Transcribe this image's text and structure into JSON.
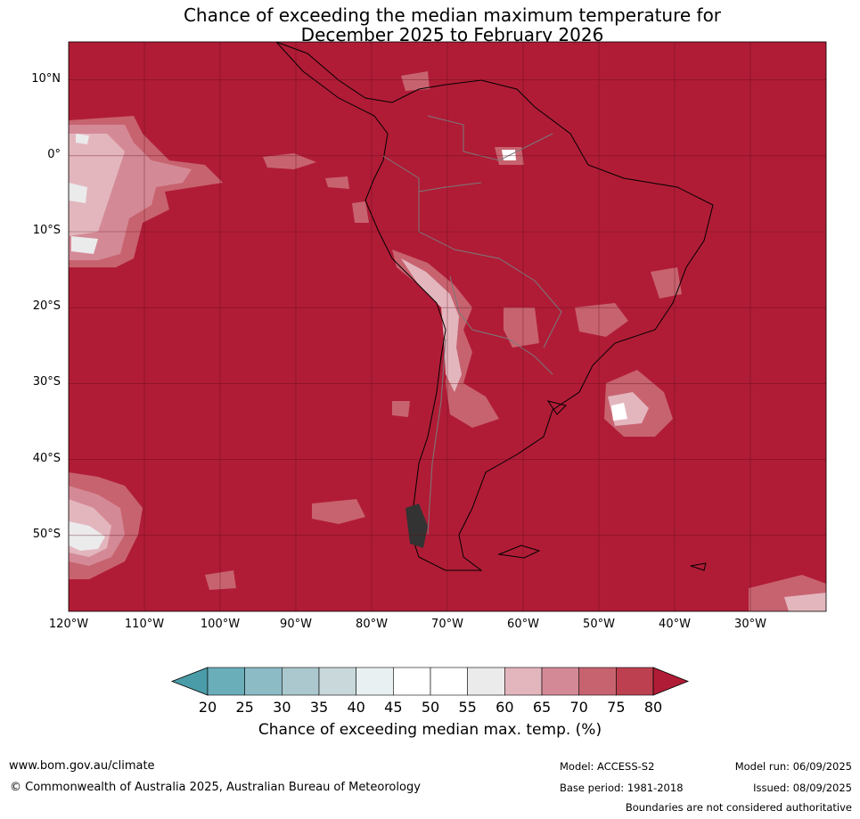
{
  "title": {
    "line1": "Chance of exceeding the median maximum temperature for",
    "line2": "December 2025 to February 2026"
  },
  "map": {
    "background_color": "#B01C36",
    "lat_labels": [
      "10°N",
      "0°",
      "10°S",
      "20°S",
      "30°S",
      "40°S",
      "50°S"
    ],
    "lon_labels": [
      "120°W",
      "110°W",
      "100°W",
      "90°W",
      "80°W",
      "70°W",
      "60°W",
      "50°W",
      "40°W",
      "30°W"
    ]
  },
  "colorbar": {
    "ticks": [
      "20",
      "25",
      "30",
      "35",
      "40",
      "45",
      "50",
      "55",
      "60",
      "65",
      "70",
      "75",
      "80"
    ],
    "colors": [
      "#4A9CA8",
      "#6AAEBA",
      "#8CBBC6",
      "#AAC8CD",
      "#C8D8DB",
      "#E9F0F1",
      "#FFFFFF",
      "#FFFFFF",
      "#EBEBEC",
      "#E3B6BE",
      "#D48A96",
      "#C7636F",
      "#BD4050",
      "#B01C36"
    ],
    "label": "Chance of exceeding median max. temp. (%)"
  },
  "footer": {
    "url": "www.bom.gov.au/climate",
    "copyright": "© Commonwealth of Australia 2025, Australian Bureau of Meteorology",
    "model": "Model: ACCESS-S2",
    "base_period": "Base period: 1981-2018",
    "model_run": "Model run: 06/09/2025",
    "issued": "Issued: 08/09/2025",
    "disclaimer": "Boundaries are not considered authoritative"
  }
}
